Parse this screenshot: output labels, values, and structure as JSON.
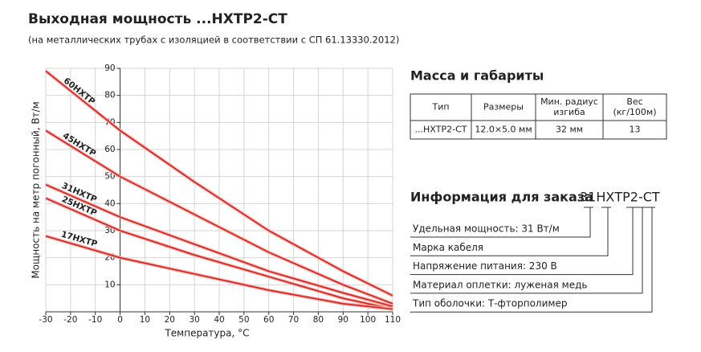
{
  "header": {
    "title": "Выходная мощность ...НХТР2-СТ",
    "subtitle": "(на металлических трубах с изоляцией в соответствии с СП 61.13330.2012)"
  },
  "chart_data": {
    "type": "line",
    "x_label": "Температура, °C",
    "y_label": "Мощность на метр погонный, Вт/м",
    "x": [
      -30,
      0,
      30,
      60,
      90,
      110
    ],
    "series": [
      {
        "name": "60НХТР",
        "color": "#d91e1e",
        "values": [
          89,
          67,
          48,
          30,
          15,
          6
        ]
      },
      {
        "name": "45НХТР",
        "color": "#d91e1e",
        "values": [
          67,
          50,
          36,
          22,
          10,
          3
        ]
      },
      {
        "name": "31НХТР",
        "color": "#d91e1e",
        "values": [
          47,
          35,
          25,
          15,
          7,
          2
        ]
      },
      {
        "name": "25НХТР",
        "color": "#d91e1e",
        "values": [
          42,
          30,
          21,
          13,
          5,
          1
        ]
      },
      {
        "name": "17НХТР",
        "color": "#d91e1e",
        "values": [
          28,
          20,
          14,
          8,
          3,
          1
        ]
      }
    ],
    "xlim": [
      -30,
      110
    ],
    "xticks": [
      -30,
      -20,
      -10,
      0,
      10,
      20,
      30,
      40,
      50,
      60,
      70,
      80,
      90,
      100,
      110
    ],
    "ylim": [
      0,
      90
    ],
    "yticks": [
      10,
      20,
      30,
      40,
      50,
      60,
      70,
      80,
      90
    ],
    "grid": true
  },
  "mass": {
    "title": "Масса и габариты",
    "headers": [
      [
        "Тип"
      ],
      [
        "Размеры"
      ],
      [
        "Мин. радиус",
        "изгиба"
      ],
      [
        "Вес",
        "(кг/100м)"
      ]
    ],
    "rows": [
      [
        "...НХТР2-СТ",
        "12.0×5.0 мм",
        "32 мм",
        "13"
      ]
    ]
  },
  "order": {
    "title": "Информация для заказа",
    "code": "31НХТР2-СТ",
    "items": [
      "Удельная мощность: 31 Вт/м",
      "Марка кабеля",
      "Напряжение питания: 230 В",
      "Материал оплетки: луженая медь",
      "Тип оболочки: Т-фторполимер"
    ]
  }
}
